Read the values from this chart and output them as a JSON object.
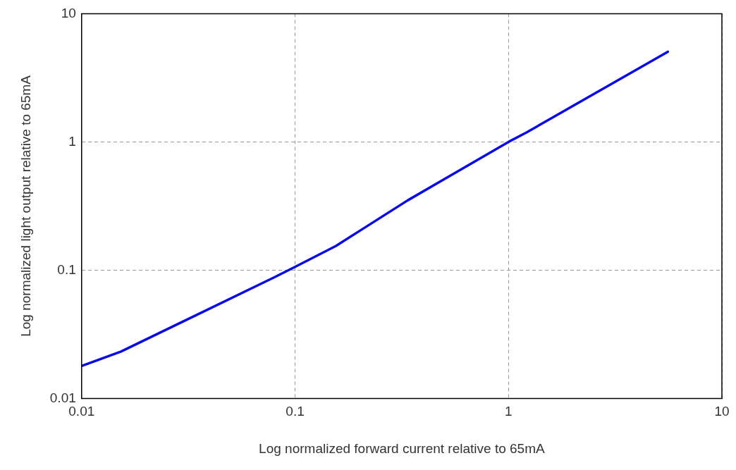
{
  "chart_data": {
    "type": "line",
    "xlabel": "Log normalized forward current relative to 65mA",
    "ylabel": "Log normalized light output relative to 65mA",
    "log": "xy",
    "grid": true,
    "legend": false,
    "marker": "none",
    "line_style": "solid",
    "xlim": [
      0.01,
      10
    ],
    "ylim": [
      0.01,
      10
    ],
    "xticks": [
      0.01,
      0.1,
      1,
      10
    ],
    "yticks": [
      0.01,
      0.1,
      1,
      10
    ],
    "series": [
      {
        "color": "#0a0ae6",
        "x": [
          0.01,
          0.0153,
          0.08,
          0.1,
          0.155,
          0.337,
          1,
          1.21,
          5.58
        ],
        "values": [
          0.0179,
          0.0232,
          0.088,
          0.106,
          0.154,
          0.35,
          1,
          1.18,
          5.05
        ]
      }
    ]
  }
}
